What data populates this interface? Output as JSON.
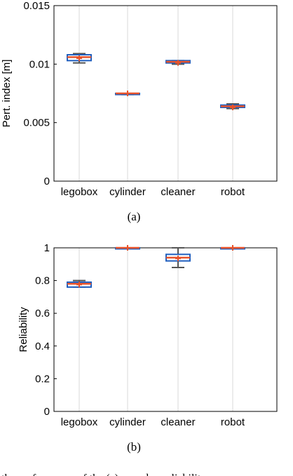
{
  "chart_data": [
    {
      "type": "box",
      "caption": "(a)",
      "ylabel": "Pert. index [m]",
      "ylim": [
        0,
        0.015
      ],
      "yticks": [
        0,
        0.005,
        0.01,
        0.015
      ],
      "ytick_labels": [
        "0",
        "0.005",
        "0.01",
        "0.015"
      ],
      "categories": [
        "legobox",
        "cylinder",
        "cleaner",
        "robot"
      ],
      "boxes": [
        {
          "whisker_low": 0.0101,
          "q1": 0.0103,
          "median": 0.0106,
          "q3": 0.0108,
          "whisker_high": 0.0109,
          "mean": 0.0105
        },
        {
          "whisker_low": 0.0074,
          "q1": 0.0074,
          "median": 0.0075,
          "q3": 0.0075,
          "whisker_high": 0.0075,
          "mean": 0.0075
        },
        {
          "whisker_low": 0.01,
          "q1": 0.0101,
          "median": 0.0102,
          "q3": 0.0103,
          "whisker_high": 0.0103,
          "mean": 0.0101
        },
        {
          "whisker_low": 0.0062,
          "q1": 0.0063,
          "median": 0.0064,
          "q3": 0.0065,
          "whisker_high": 0.0066,
          "mean": 0.0063
        }
      ],
      "grid": "vertical"
    },
    {
      "type": "box",
      "caption": "(b)",
      "ylabel": "Reliability",
      "ylim": [
        0,
        1
      ],
      "yticks": [
        0,
        0.2,
        0.4,
        0.6,
        0.8,
        1
      ],
      "ytick_labels": [
        "0",
        "0.2",
        "0.4",
        "0.6",
        "0.8",
        "1"
      ],
      "categories": [
        "legobox",
        "cylinder",
        "cleaner",
        "robot"
      ],
      "boxes": [
        {
          "whisker_low": 0.76,
          "q1": 0.76,
          "median": 0.78,
          "q3": 0.79,
          "whisker_high": 0.8,
          "mean": 0.775
        },
        {
          "whisker_low": 1.0,
          "q1": 1.0,
          "median": 1.0,
          "q3": 1.0,
          "whisker_high": 1.0,
          "mean": 1.0
        },
        {
          "whisker_low": 0.88,
          "q1": 0.92,
          "median": 0.94,
          "q3": 0.96,
          "whisker_high": 1.0,
          "mean": 0.935
        },
        {
          "whisker_low": 1.0,
          "q1": 1.0,
          "median": 1.0,
          "q3": 1.0,
          "whisker_high": 1.0,
          "mean": 1.0
        }
      ],
      "grid": "vertical"
    }
  ],
  "colors": {
    "box": "#1f5fbf",
    "median": "#e8532b",
    "whisker": "#555555",
    "mean": "#e8532b",
    "grid": "#d9d9d9"
  },
  "footer_text": "...the performance of the (a) ... and ... reliability ..."
}
